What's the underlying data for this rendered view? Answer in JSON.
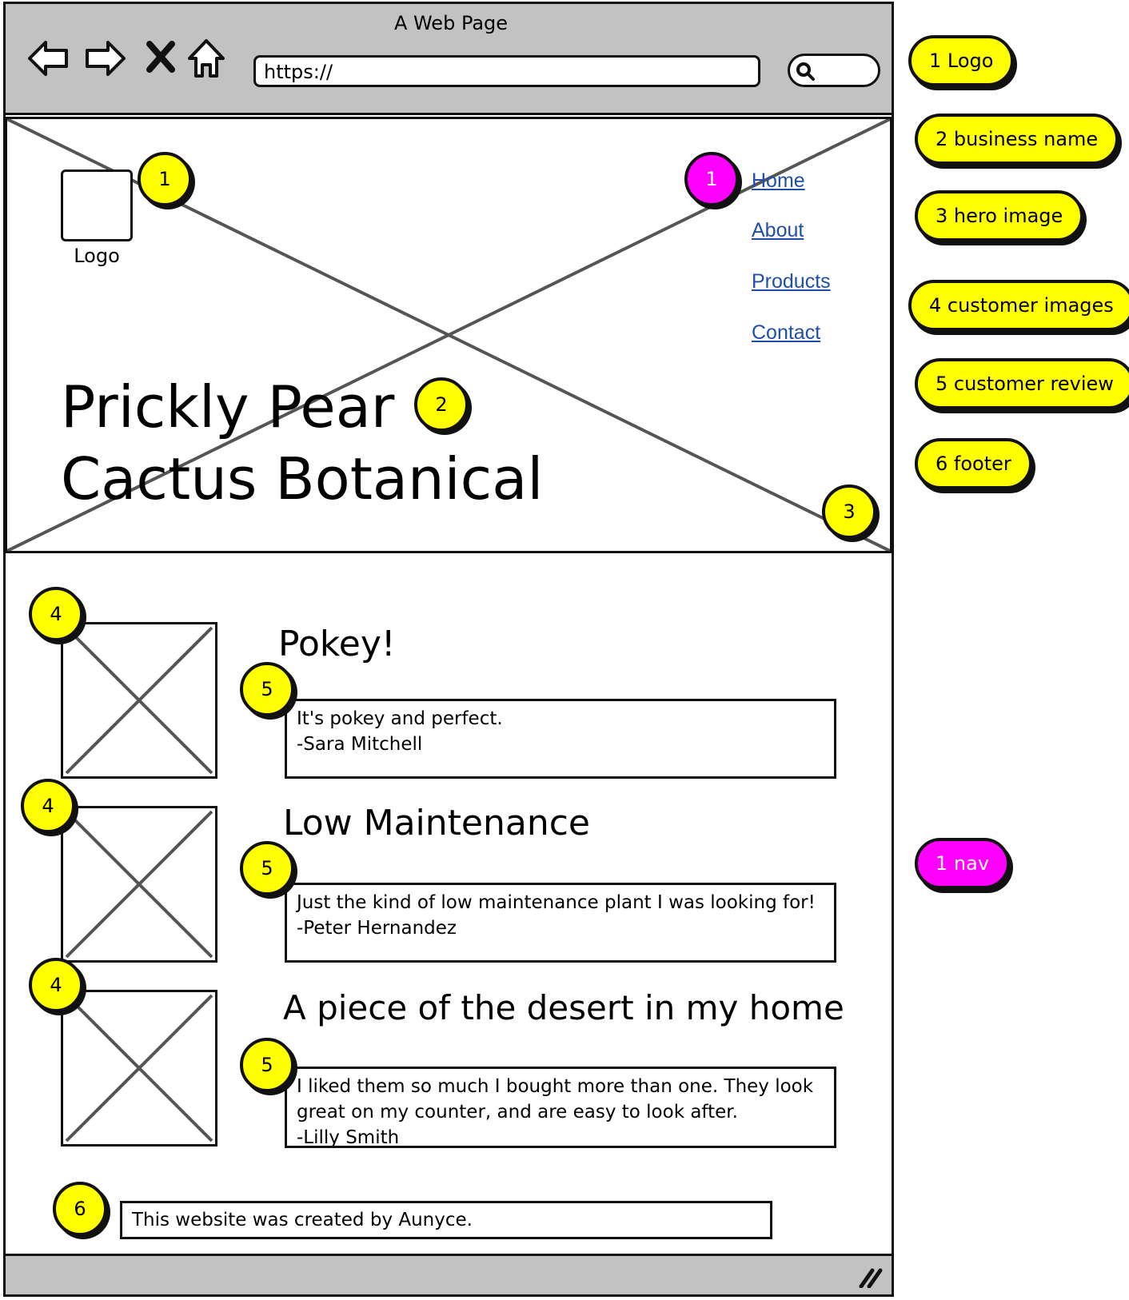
{
  "window": {
    "title": "A Web Page",
    "address": "https://",
    "icons": [
      "back-arrow-icon",
      "forward-arrow-icon",
      "close-x-icon",
      "home-icon",
      "search-icon",
      "resize-grip-icon"
    ]
  },
  "hero": {
    "logo_label": "Logo",
    "nav": [
      "Home",
      "About",
      "Products",
      "Contact"
    ],
    "business_name_line1": "Prickly Pear",
    "business_name_line2": "Cactus Botanical"
  },
  "reviews": [
    {
      "heading": "Pokey!",
      "line1": "It's pokey and perfect.",
      "line2": "-Sara Mitchell",
      "line3": ""
    },
    {
      "heading": "Low Maintenance",
      "line1": "Just the kind of low maintenance plant I was looking for!",
      "line2": "-Peter Hernandez",
      "line3": ""
    },
    {
      "heading": "A piece of the desert in my home",
      "line1": "I liked them so much I bought more than one. They look",
      "line2": "great on my counter, and are easy to look after.",
      "line3": "-Lilly Smith"
    }
  ],
  "footer": {
    "text": "This website was created by Aunyce."
  },
  "badges": {
    "logo": "1",
    "nav": "1",
    "business_name": "2",
    "hero_image": "3",
    "customer_images": "4",
    "customer_review": "5",
    "footer": "6"
  },
  "legend": [
    "1 Logo",
    "2 business name",
    "3 hero image",
    "4 customer images",
    "5 customer review",
    "6 footer",
    "1 nav"
  ],
  "colors": {
    "badge": "#ffff00",
    "nav_badge": "#ff00ff",
    "chrome": "#c2c2c2",
    "link": "#1f4fa8"
  }
}
